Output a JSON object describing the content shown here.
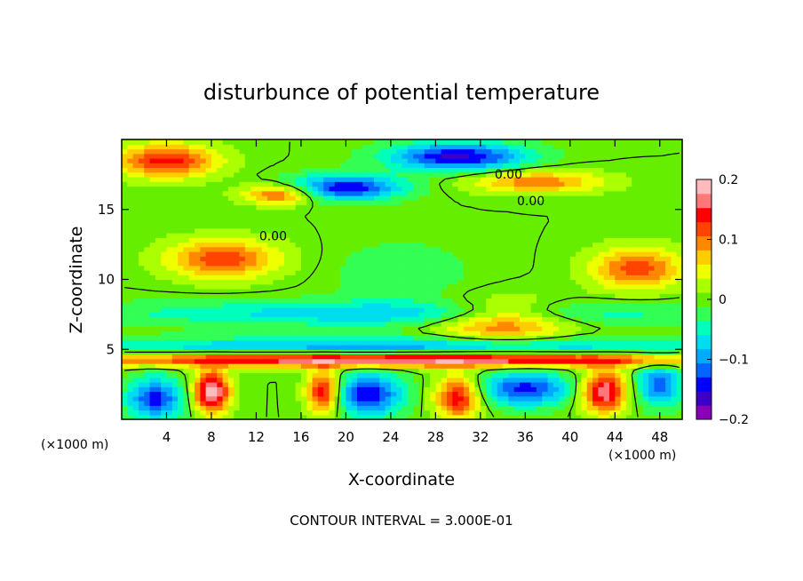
{
  "chart_data": {
    "type": "heatmap",
    "title": "disturbunce of potential temperature",
    "xlabel": "X-coordinate",
    "ylabel": "Z-coordinate",
    "x_unit": "(×1000 m)",
    "y_unit": "(×1000 m)",
    "xlim": [
      0,
      50
    ],
    "ylim": [
      0,
      20
    ],
    "x_ticks": [
      4,
      8,
      12,
      16,
      20,
      24,
      28,
      32,
      36,
      40,
      44,
      48
    ],
    "y_ticks": [
      5,
      10,
      15
    ],
    "colorbar": {
      "range": [
        -0.2,
        0.2
      ],
      "tick_values": [
        0.2,
        0.1,
        0,
        -0.1,
        -0.2
      ],
      "tick_labels": [
        "0.2",
        "0.1",
        "0",
        "−0.1",
        "−0.2"
      ],
      "colors": [
        "#8a00b8",
        "#3a00c8",
        "#0000ff",
        "#0066ff",
        "#00aaff",
        "#00ddee",
        "#00ffbb",
        "#33ff55",
        "#66ee00",
        "#aaff00",
        "#eeff00",
        "#ffcc00",
        "#ff8800",
        "#ff4400",
        "#ff0000",
        "#ff7777",
        "#ffbbbb"
      ]
    },
    "contour_interval_text": "CONTOUR INTERVAL = 3.000E-01",
    "contour_labels": [
      "0.00",
      "0.00",
      "0.00"
    ],
    "contour_label_positions": [
      [
        34.5,
        17.2
      ],
      [
        36.5,
        15.3
      ],
      [
        13.5,
        12.8
      ]
    ],
    "colors": {
      "positive_max": "#ffbbbb",
      "negative_min": "#8a00b8",
      "background": "#33ff55"
    },
    "features": [
      {
        "x": 4,
        "z": 18.5,
        "value": 0.14,
        "rx": 4.5,
        "rz": 1.2
      },
      {
        "x": 14,
        "z": 16.1,
        "value": 0.12,
        "rx": 3.2,
        "rz": 0.7
      },
      {
        "x": 30,
        "z": 18.8,
        "value": -0.16,
        "rx": 6,
        "rz": 1.0
      },
      {
        "x": 20,
        "z": 16.6,
        "value": -0.15,
        "rx": 5,
        "rz": 0.9
      },
      {
        "x": 37,
        "z": 17.0,
        "value": 0.1,
        "rx": 6,
        "rz": 0.8
      },
      {
        "x": 25,
        "z": 10.5,
        "value": -0.03,
        "rx": 6,
        "rz": 2.2
      },
      {
        "x": 9,
        "z": 11.5,
        "value": 0.12,
        "rx": 5,
        "rz": 1.4
      },
      {
        "x": 46,
        "z": 10.8,
        "value": 0.12,
        "rx": 4,
        "rz": 1.5
      },
      {
        "x": 34,
        "z": 7.0,
        "value": 0.12,
        "rx": 6,
        "rz": 1.5
      },
      {
        "x": 25,
        "z": 7.6,
        "value": -0.08,
        "rx": 25,
        "rz": 0.9
      },
      {
        "x": 25,
        "z": 5.2,
        "value": -0.1,
        "rx": 30,
        "rz": 0.7
      },
      {
        "x": 25,
        "z": 4.3,
        "value": 0.2,
        "rx": 30,
        "rz": 0.5
      },
      {
        "x": 8,
        "z": 2.0,
        "value": 0.2,
        "rx": 1.6,
        "rz": 1.5
      },
      {
        "x": 3,
        "z": 1.5,
        "value": -0.14,
        "rx": 2.5,
        "rz": 1.5
      },
      {
        "x": 18,
        "z": 2.0,
        "value": 0.16,
        "rx": 1.5,
        "rz": 1.5
      },
      {
        "x": 22,
        "z": 1.8,
        "value": -0.15,
        "rx": 3,
        "rz": 1.5
      },
      {
        "x": 30,
        "z": 1.6,
        "value": 0.15,
        "rx": 2,
        "rz": 1.5
      },
      {
        "x": 36,
        "z": 2.2,
        "value": -0.14,
        "rx": 4,
        "rz": 1.2
      },
      {
        "x": 43,
        "z": 2.0,
        "value": 0.18,
        "rx": 2,
        "rz": 1.5
      },
      {
        "x": 48,
        "z": 2.5,
        "value": -0.12,
        "rx": 2,
        "rz": 1.5
      }
    ]
  }
}
